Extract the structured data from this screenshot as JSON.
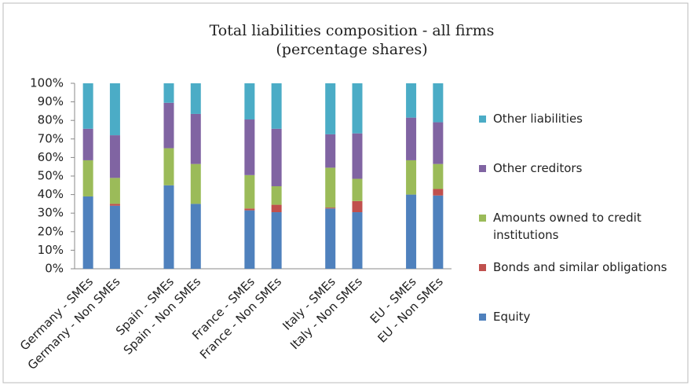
{
  "chart_data": {
    "type": "stacked_bar",
    "title": "Total liabilities composition - all firms",
    "subtitle": "(percentage shares)",
    "categories": [
      "Germany - SMEs",
      "Germany - Non SMEs",
      null,
      "Spain - SMEs",
      "Spain - Non SMEs",
      null,
      "France - SMEs",
      "France - Non SMEs",
      null,
      "Italy - SMEs",
      "Italy - Non SMEs",
      null,
      "EU - SMEs",
      "EU - Non SMEs"
    ],
    "series": [
      {
        "name": "Equity",
        "color": "#4f81bd",
        "values": [
          39,
          34,
          null,
          45,
          35,
          null,
          31.5,
          30.5,
          null,
          32.5,
          30.5,
          null,
          40,
          39.5
        ]
      },
      {
        "name": "Bonds and similar obligations",
        "color": "#c0504d",
        "values": [
          0,
          1,
          null,
          0,
          0,
          null,
          1,
          4,
          null,
          0.5,
          6,
          null,
          0,
          3.5
        ]
      },
      {
        "name": "Amounts owned to credit institutions",
        "color": "#9bbb59",
        "values": [
          19.5,
          14,
          null,
          20,
          21.5,
          null,
          18,
          10,
          null,
          21.5,
          12,
          null,
          18.5,
          13.5
        ]
      },
      {
        "name": "Other creditors",
        "color": "#8064a2",
        "values": [
          17,
          23,
          null,
          24.5,
          27,
          null,
          30,
          31,
          null,
          18,
          24.5,
          null,
          23,
          22.5
        ]
      },
      {
        "name": "Other liabilities",
        "color": "#4bacc6",
        "values": [
          24.5,
          28,
          null,
          10.5,
          16.5,
          null,
          19.5,
          24.5,
          null,
          27.5,
          27,
          null,
          18.5,
          21
        ]
      }
    ],
    "ylim": [
      0,
      100
    ],
    "yticks": [
      {
        "value": 0,
        "label": "0%"
      },
      {
        "value": 10,
        "label": "10%"
      },
      {
        "value": 20,
        "label": "20%"
      },
      {
        "value": 30,
        "label": "30%"
      },
      {
        "value": 40,
        "label": "40%"
      },
      {
        "value": 50,
        "label": "50%"
      },
      {
        "value": 60,
        "label": "60%"
      },
      {
        "value": 70,
        "label": "70%"
      },
      {
        "value": 80,
        "label": "80%"
      },
      {
        "value": 90,
        "label": "90%"
      },
      {
        "value": 100,
        "label": "100%"
      }
    ],
    "legend": "right"
  }
}
